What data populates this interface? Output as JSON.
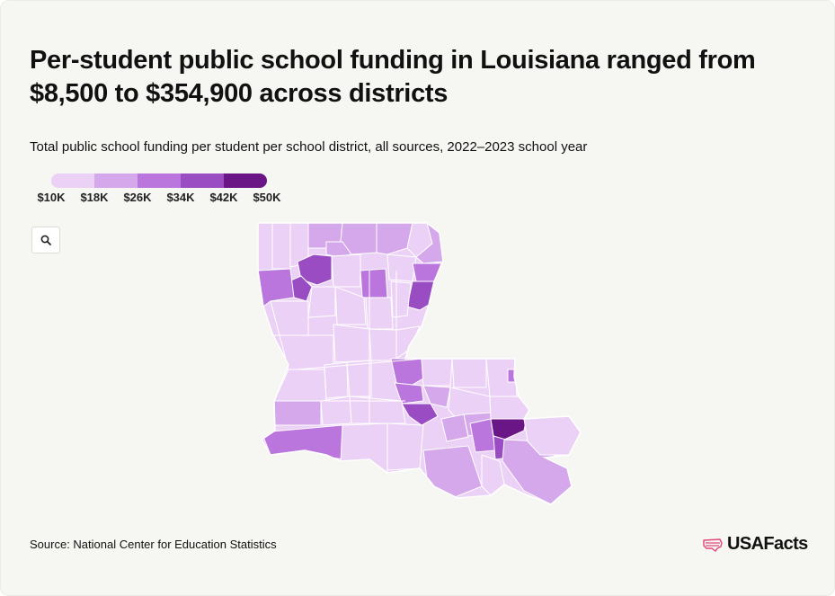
{
  "header": {
    "title": "Per-student public school funding in Louisiana ranged from $8,500 to $354,900 across districts",
    "subtitle": "Total public school funding per student per school district, all sources, 2022–2023 school year"
  },
  "legend": {
    "labels": [
      "$10K",
      "$18K",
      "$26K",
      "$34K",
      "$42K",
      "$50K"
    ],
    "colors": [
      "#ecd1f6",
      "#d4a8ea",
      "#bb76de",
      "#9a4cc3",
      "#6a1686"
    ]
  },
  "zoom_button": {
    "icon": "magnifier-icon"
  },
  "map": {
    "state": "Louisiana",
    "border_color": "#ffffff",
    "base_color": "#ecd1f6"
  },
  "footer": {
    "source": "Source: National Center for Education Statistics",
    "logo_text": "USAFacts",
    "logo_color": "#e0457b"
  }
}
